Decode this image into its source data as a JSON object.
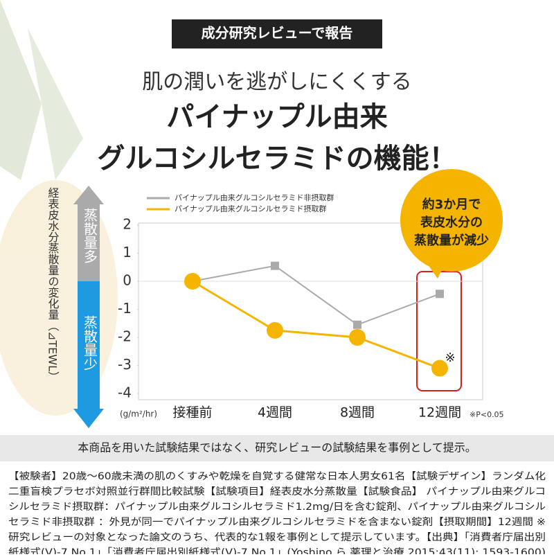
{
  "header": {
    "badge": "成分研究レビューで報告",
    "subtitle": "肌の潤いを逃がしにくくする",
    "title": [
      "パイナップル由来",
      "グルコシルセラミドの機能！"
    ]
  },
  "chart_data": {
    "type": "line",
    "y_label": "経表皮水分蒸散量の変化量（⊿TEWL）",
    "arrow_labels": [
      "蒸散量多",
      "蒸散量少"
    ],
    "unit": "(g/m²/hr)",
    "categories": [
      "接種前",
      "4週間",
      "8週間",
      "12週間"
    ],
    "series": [
      {
        "name": "パイナップル由来グルコシルセラミド非摂取群",
        "color": "#aaaaaa",
        "values": [
          0,
          0.55,
          -1.55,
          -0.45
        ]
      },
      {
        "name": "パイナップル由来グルコシルセラミド摂取群",
        "color": "#f5b400",
        "values": [
          0,
          -1.75,
          -2.0,
          -3.1
        ]
      }
    ],
    "ylim": [
      -4,
      2
    ],
    "yticks": [
      2,
      1,
      0,
      -1,
      -2,
      -3,
      -4
    ],
    "grid": false,
    "annotation": [
      "約3か月で",
      "表皮水分の",
      "蒸散量が減少"
    ],
    "mark": "※",
    "significance": "※P<0.05"
  },
  "note": "本商品を用いた試験結果ではなく、研究レビューの試験結果を事例として提示。",
  "footer": [
    "【被験者】20歳～60歳未満の肌のくすみや乾燥を自覚する健常な日本人男女61名【試験デザイン】ランダム化",
    "二重盲検プラセボ対照並行群間比較試験【試験項目】経表皮水分蒸散量【試験食品】 パイナップル由来グルコ",
    "シルセラミド摂取群：パイナップル由来グルコシルセラミド1.2mg/日を含む錠剤、パイナップル由来グルコシル",
    "セラミド非摂取群 ：外見が同一でパイナップル由来グルコシルセラミドを含まない錠剤【摂取期間】12週間 ※",
    "研究レビューの対象となった論文のうち、代表的な1報を事例として提示しています。【出典】「消費者庁届出別",
    "紙様式(V)-7 No.1」「消費者庁届出別紙様式(V)-7 No.1」(Yoshino ら,薬理と治療,2015;43(11): 1593-1600)"
  ]
}
